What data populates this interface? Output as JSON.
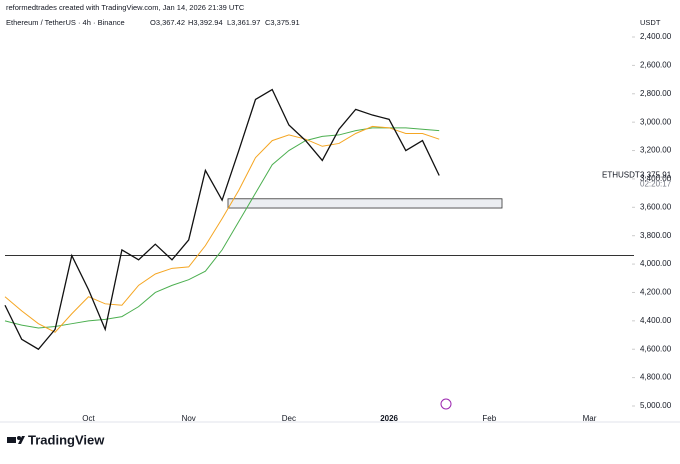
{
  "header": {
    "credit": "reformedtrades created with TradingView.com, Jan 14, 2026 21:39 UTC",
    "symbol": "Ethereum / TetherUS · 4h · Binance",
    "ohlc": [
      "O3,367.42",
      "H3,392.94",
      "L3,361.97",
      "C3,375.91"
    ],
    "unit": "USDT",
    "countdown": "02:20:17",
    "brand": "TradingView"
  },
  "chart_data": {
    "type": "line",
    "categories": [
      null,
      null,
      null,
      null,
      null,
      "Oct",
      null,
      null,
      null,
      null,
      null,
      "Nov",
      null,
      null,
      null,
      null,
      null,
      "Dec",
      null,
      null,
      null,
      null,
      null,
      "2026",
      null,
      null,
      null,
      null,
      null,
      "Feb",
      null,
      null,
      null,
      null,
      null,
      "Mar"
    ],
    "series": [
      {
        "name": "ETHUSDT",
        "color": "#111111",
        "values": [
          4290,
          4530,
          4600,
          4460,
          3940,
          4180,
          4460,
          3900,
          3970,
          3860,
          3970,
          3830,
          3340,
          3550,
          3200,
          2840,
          2770,
          3020,
          3130,
          3270,
          3050,
          2910,
          2950,
          2980,
          3200,
          3130,
          3375.91,
          null,
          null,
          null,
          null,
          null,
          null,
          null,
          null,
          null
        ],
        "value_labels": [
          null,
          null,
          null,
          null,
          null,
          null,
          null,
          null,
          null,
          null,
          null,
          null,
          null,
          null,
          null,
          null,
          null,
          null,
          null,
          null,
          null,
          null,
          null,
          null,
          null,
          null,
          "3,375.91",
          null,
          null,
          null,
          null,
          null,
          null,
          null,
          null,
          null
        ]
      },
      {
        "color": "#f5a623",
        "values": [
          4230,
          4330,
          4420,
          4480,
          4350,
          4230,
          4280,
          4290,
          4150,
          4070,
          4030,
          4020,
          3870,
          3680,
          3480,
          3250,
          3130,
          3090,
          3120,
          3170,
          3150,
          3080,
          3030,
          3040,
          3080,
          3080,
          3120,
          null,
          null,
          null,
          null,
          null,
          null,
          null,
          null,
          null
        ]
      },
      {
        "color": "#4caf50",
        "values": [
          4400,
          4430,
          4450,
          4440,
          4420,
          4400,
          4390,
          4370,
          4300,
          4200,
          4150,
          4110,
          4050,
          3900,
          3700,
          3500,
          3300,
          3200,
          3130,
          3100,
          3090,
          3060,
          3040,
          3040,
          3040,
          3050,
          3060,
          null,
          null,
          null,
          null,
          null,
          null,
          null,
          null,
          null
        ]
      }
    ],
    "hline": 3940,
    "zone": [
      3540,
      3605
    ],
    "ylim": [
      5000,
      2400
    ],
    "yticks": [
      {
        "value": 2400,
        "label": "2,400.00"
      },
      {
        "value": 2600,
        "label": "2,600.00"
      },
      {
        "value": 2800,
        "label": "2,800.00"
      },
      {
        "value": 3000,
        "label": "3,000.00"
      },
      {
        "value": 3200,
        "label": "3,200.00"
      },
      {
        "value": 3400,
        "label": "3,400.00"
      },
      {
        "value": 3600,
        "label": "3,600.00"
      },
      {
        "value": 3800,
        "label": "3,800.00"
      },
      {
        "value": 4000,
        "label": "4,000.00"
      },
      {
        "value": 4200,
        "label": "4,200.00"
      },
      {
        "value": 4400,
        "label": "4,400.00"
      },
      {
        "value": 4600,
        "label": "4,600.00"
      },
      {
        "value": 4800,
        "label": "4,800.00"
      },
      {
        "value": 5000,
        "label": "5,000.00"
      }
    ]
  }
}
